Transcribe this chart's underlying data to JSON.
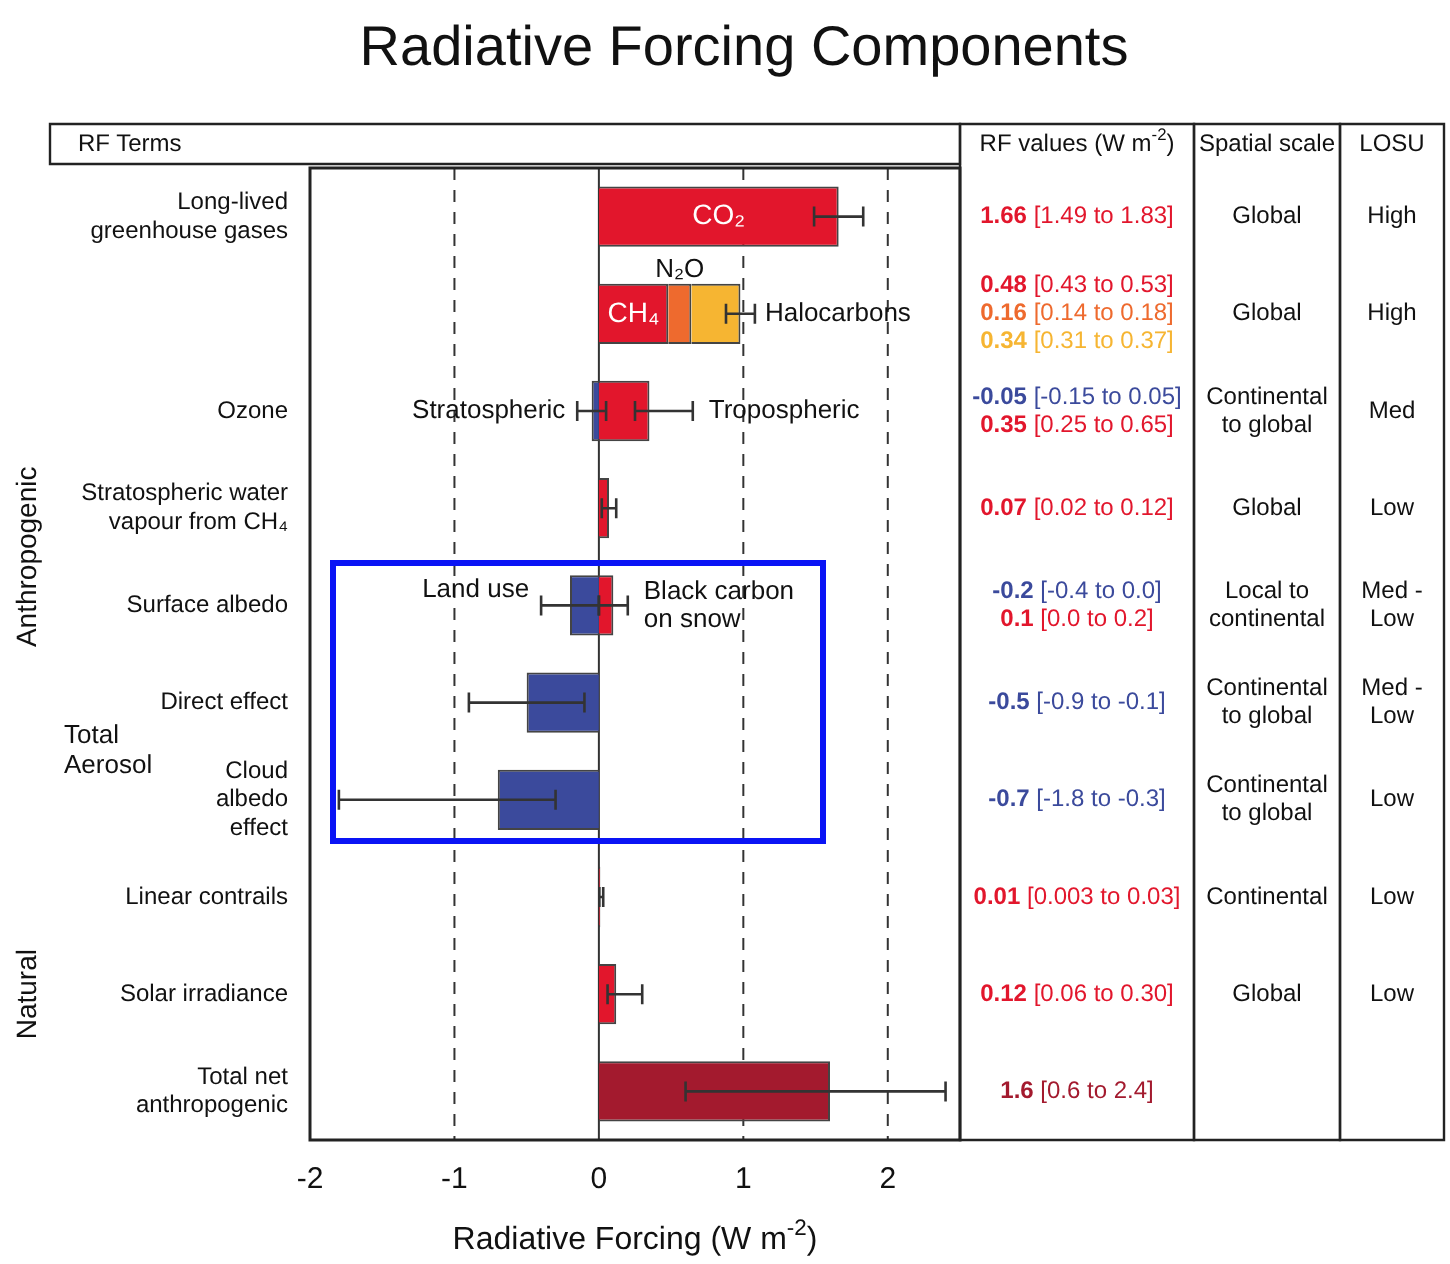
{
  "chart_data": {
    "type": "bar",
    "orientation": "horizontal",
    "stacked": true,
    "title": "Radiative Forcing Components",
    "xlabel": "Radiative Forcing (W m$^{-2}$)",
    "categories": [
      "Long-lived greenhouse gases",
      null,
      "Ozone",
      "Stratospheric water vapour from CH₄",
      "Surface albedo",
      "Direct effect",
      "Cloud albedo effect",
      "Linear contrails",
      "Solar irradiance",
      "Total net anthropogenic"
    ],
    "xlim": [
      -2,
      2.5
    ],
    "xticks": [
      -2,
      -1,
      0,
      1,
      2
    ],
    "grid": "x",
    "legend": false,
    "series": [
      {
        "name": "CO₂",
        "color": "#e2162c",
        "values": [
          1.66,
          null,
          null,
          null,
          null,
          null,
          null,
          null,
          null,
          null
        ],
        "errors": [
          [
            1.49,
            1.83
          ],
          null,
          null,
          null,
          null,
          null,
          null,
          null,
          null,
          null
        ]
      },
      {
        "name": "CH₄",
        "color": "#e2162c",
        "values": [
          null,
          0.48,
          null,
          null,
          null,
          null,
          null,
          null,
          null,
          null
        ]
      },
      {
        "name": "N₂O",
        "color": "#ee6a2e",
        "values": [
          null,
          0.16,
          null,
          null,
          null,
          null,
          null,
          null,
          null,
          null
        ]
      },
      {
        "name": "Halocarbons",
        "color": "#f6b532",
        "values": [
          null,
          0.34,
          null,
          null,
          null,
          null,
          null,
          null,
          null,
          null
        ],
        "errors": [
          null,
          [
            0.88,
            1.08
          ],
          null,
          null,
          null,
          null,
          null,
          null,
          null,
          null
        ]
      },
      {
        "color": "#3b4a9c",
        "values": [
          null,
          null,
          -0.05,
          null,
          -0.2,
          -0.5,
          -0.7,
          null,
          null,
          null
        ],
        "errors": [
          null,
          null,
          [
            -0.15,
            0.05
          ],
          null,
          [
            -0.4,
            0.0
          ],
          [
            -0.9,
            -0.1
          ],
          [
            -1.8,
            -0.3
          ],
          null,
          null,
          null
        ]
      },
      {
        "color": "#e2162c",
        "values": [
          null,
          null,
          0.35,
          0.07,
          0.1,
          null,
          null,
          0.01,
          0.12,
          null
        ],
        "errors": [
          null,
          null,
          [
            0.25,
            0.65
          ],
          [
            0.02,
            0.12
          ],
          [
            0.0,
            0.2
          ],
          null,
          null,
          [
            0.003,
            0.03
          ],
          [
            0.06,
            0.3
          ],
          null
        ]
      },
      {
        "color": "#a31a2e",
        "values": [
          null,
          null,
          null,
          null,
          null,
          null,
          null,
          null,
          null,
          1.6
        ],
        "errors": [
          null,
          null,
          null,
          null,
          null,
          null,
          null,
          null,
          null,
          [
            0.6,
            2.4
          ]
        ]
      }
    ],
    "annotations": [
      "RF Terms",
      "RF values (W m$^{-2}$)",
      "Spatial scale",
      "LOSU",
      "1.66 [1.49 to 1.83]",
      "0.48 [0.43 to 0.53]",
      "0.16 [0.14 to 0.18]",
      "0.34 [0.31 to 0.37]",
      "-0.05 [-0.15 to 0.05]",
      "0.35 [0.25 to 0.65]",
      "0.07 [0.02 to 0.12]",
      "-0.2 [-0.4 to 0.0]",
      "0.1 [0.0 to 0.2]",
      "-0.5 [-0.9 to -0.1]",
      "-0.7 [-1.8 to -0.3]",
      "0.01 [0.003 to 0.03]",
      "0.12 [0.06 to 0.30]",
      "1.6 [0.6 to 2.4]",
      "Global",
      "High",
      "Global",
      "High",
      "Continental to global",
      "Med",
      "Global",
      "Low",
      "Local to continental",
      "Med - Low",
      "Continental to global",
      "Med - Low",
      "Continental to global",
      "Low",
      "Continental",
      "Low",
      "Global",
      "Low",
      "Anthropogenic",
      "Natural",
      "Total Aerosol",
      {
        "text": "Stratospheric",
        "x": -0.15,
        "y": "Ozone"
      },
      {
        "text": "Tropospheric",
        "x": 0.65,
        "y": "Ozone"
      },
      {
        "text": "Land use",
        "x": -0.4,
        "y": "Surface albedo"
      },
      {
        "text": "Black carbon on snow",
        "x": 0.2,
        "y": "Surface albedo"
      }
    ]
  }
}
